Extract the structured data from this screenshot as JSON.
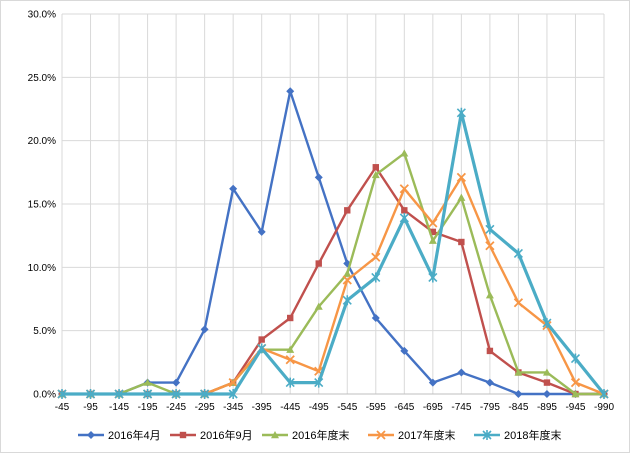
{
  "chart_data": {
    "type": "line",
    "title": "",
    "xlabel": "",
    "ylabel": "",
    "categories": [
      "-45",
      "-95",
      "-145",
      "-195",
      "-245",
      "-295",
      "-345",
      "-395",
      "-445",
      "-495",
      "-545",
      "-595",
      "-645",
      "-695",
      "-745",
      "-795",
      "-845",
      "-895",
      "-945",
      "-990"
    ],
    "ylim": [
      0,
      30
    ],
    "yticks": [
      "0.0%",
      "5.0%",
      "10.0%",
      "15.0%",
      "20.0%",
      "25.0%",
      "30.0%"
    ],
    "ytick_values": [
      0,
      5,
      10,
      15,
      20,
      25,
      30
    ],
    "grid": "vertical and horizontal gridlines",
    "legend_position": "bottom",
    "series": [
      {
        "name": "2016年4月",
        "color": "#4472C4",
        "marker": "diamond",
        "values": [
          0,
          0,
          0,
          0.9,
          0.9,
          5.1,
          16.2,
          12.8,
          23.9,
          17.1,
          10.3,
          6.0,
          3.4,
          0.9,
          1.7,
          0.9,
          0,
          0,
          0,
          0
        ]
      },
      {
        "name": "2016年9月",
        "color": "#C0504D",
        "marker": "square",
        "values": [
          0,
          0,
          0,
          0,
          0,
          0,
          0.9,
          4.3,
          6.0,
          10.3,
          14.5,
          17.9,
          14.5,
          12.8,
          12.0,
          3.4,
          1.7,
          0.9,
          0,
          0
        ]
      },
      {
        "name": "2016年度末",
        "color": "#9BBB59",
        "marker": "triangle",
        "values": [
          0,
          0,
          0,
          0.9,
          0,
          0,
          0.9,
          3.5,
          3.5,
          6.9,
          9.5,
          17.3,
          19.0,
          12.1,
          15.5,
          7.8,
          1.7,
          1.7,
          0,
          0
        ]
      },
      {
        "name": "2017年度末",
        "color": "#F79646",
        "marker": "x",
        "values": [
          0,
          0,
          0,
          0,
          0,
          0,
          0.9,
          3.6,
          2.7,
          1.8,
          9.0,
          10.8,
          16.2,
          13.5,
          17.1,
          11.7,
          7.2,
          5.4,
          0.9,
          0
        ]
      },
      {
        "name": "2018年度末",
        "color": "#4BACC6",
        "marker": "star",
        "values": [
          0,
          0,
          0,
          0,
          0,
          0,
          0,
          3.6,
          0.9,
          0.9,
          7.4,
          9.2,
          13.9,
          9.2,
          22.2,
          13.0,
          11.1,
          5.6,
          2.8,
          0
        ]
      }
    ]
  }
}
